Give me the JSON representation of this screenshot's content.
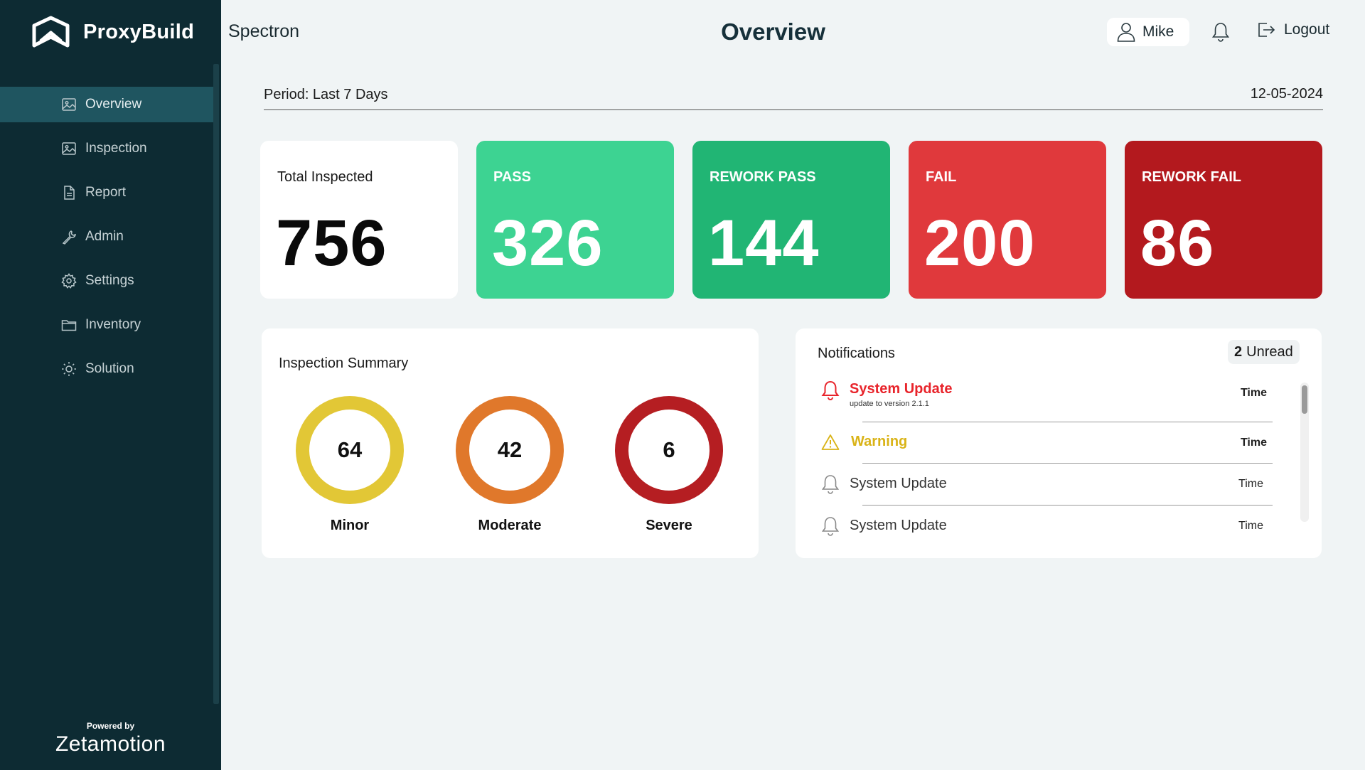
{
  "brand": {
    "name": "ProxyBuild"
  },
  "sidebar": {
    "items": [
      {
        "label": "Overview",
        "icon": "image-icon",
        "active": true
      },
      {
        "label": "Inspection",
        "icon": "image-icon",
        "active": false
      },
      {
        "label": "Report",
        "icon": "document-icon",
        "active": false
      },
      {
        "label": "Admin",
        "icon": "wrench-icon",
        "active": false
      },
      {
        "label": "Settings",
        "icon": "gear-icon",
        "active": false
      },
      {
        "label": "Inventory",
        "icon": "folder-icon",
        "active": false
      },
      {
        "label": "Solution",
        "icon": "sun-icon",
        "active": false
      }
    ],
    "powered_by": "Powered by",
    "powered_brand": "Zetamotion"
  },
  "header": {
    "app_name": "Spectron",
    "title": "Overview",
    "user_name": "Mike",
    "logout_label": "Logout"
  },
  "period": {
    "label": "Period: Last 7 Days",
    "date": "12-05-2024"
  },
  "stats": [
    {
      "label": "Total Inspected",
      "value": "756",
      "color": "#ffffff"
    },
    {
      "label": "PASS",
      "value": "326",
      "color": "#3dd392"
    },
    {
      "label": "REWORK PASS",
      "value": "144",
      "color": "#21b574"
    },
    {
      "label": "FAIL",
      "value": "200",
      "color": "#e0393c"
    },
    {
      "label": "REWORK FAIL",
      "value": "86",
      "color": "#b3191e"
    }
  ],
  "summary": {
    "title": "Inspection Summary",
    "items": [
      {
        "label": "Minor",
        "value": "64",
        "color": "#e2c736"
      },
      {
        "label": "Moderate",
        "value": "42",
        "color": "#e0782b"
      },
      {
        "label": "Severe",
        "value": "6",
        "color": "#b51e22"
      }
    ]
  },
  "notifications": {
    "title": "Notifications",
    "unread_count": "2",
    "unread_label": "Unread",
    "items": [
      {
        "title": "System Update",
        "subtitle": "update to version 2.1.1",
        "time": "Time",
        "type": "alert",
        "color": "#e8242b"
      },
      {
        "title": "Warning",
        "time": "Time",
        "type": "warning",
        "color": "#d9b317"
      },
      {
        "title": "System Update",
        "time": "Time",
        "type": "read",
        "color": "#333333"
      },
      {
        "title": "System Update",
        "time": "Time",
        "type": "read",
        "color": "#333333"
      }
    ]
  }
}
